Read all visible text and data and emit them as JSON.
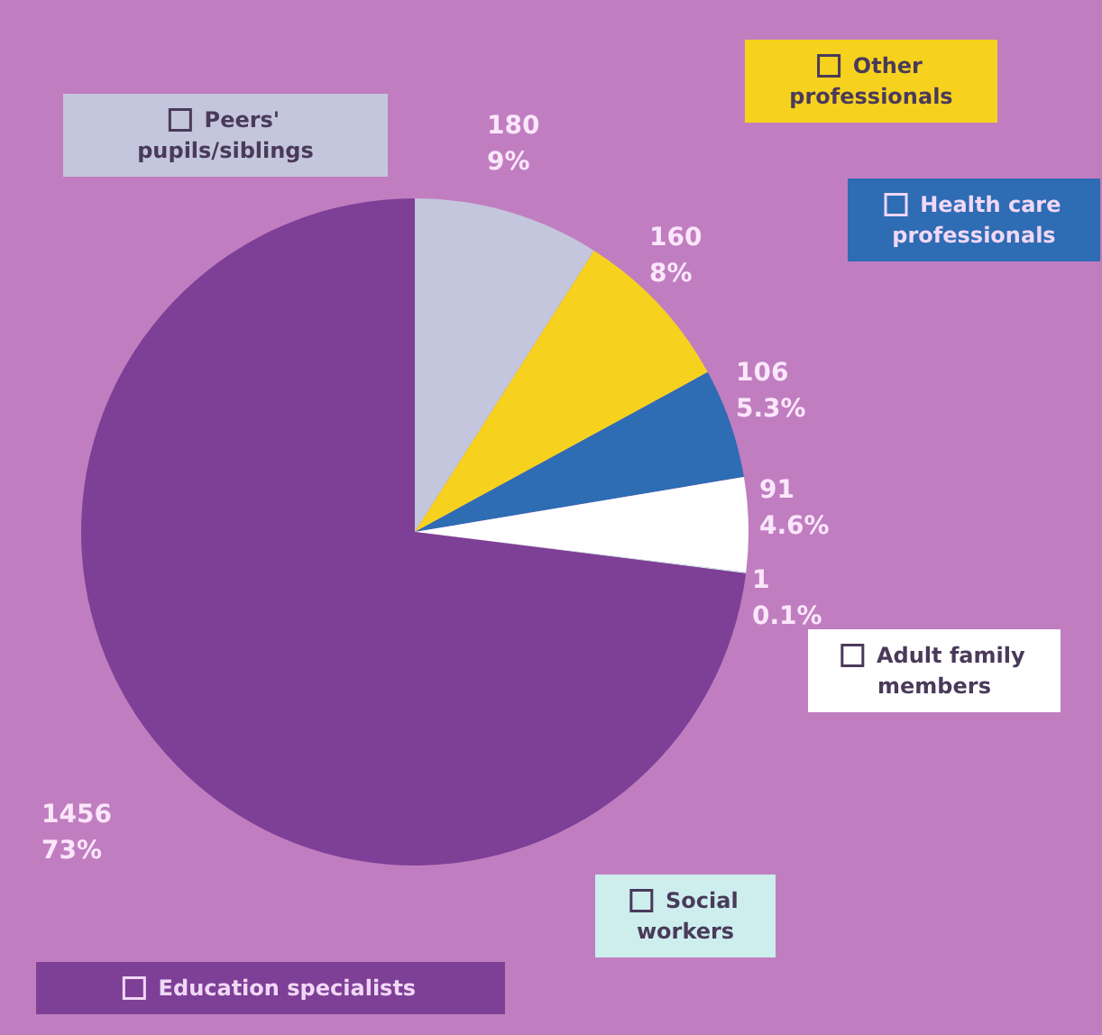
{
  "chart_data": {
    "type": "pie",
    "categories": [
      "Peers' pupils/siblings",
      "Other professionals",
      "Health care professionals",
      "Adult family members",
      "Social workers",
      "Education specialists"
    ],
    "values": [
      180,
      160,
      106,
      91,
      1,
      1456
    ],
    "value_labels": [
      "180\n9%",
      "160\n8%",
      "106\n5.3%",
      "91\n4.6%",
      "1\n0.1%",
      "1456\n73%"
    ],
    "colors": [
      "#c3c6dc",
      "#f6d21e",
      "#2e6cb4",
      "#ffffff",
      "#cdeeed",
      "#7e3f96"
    ],
    "legend": "right"
  }
}
